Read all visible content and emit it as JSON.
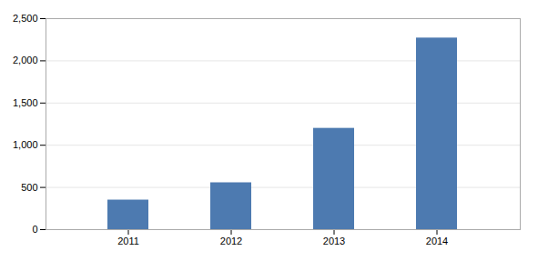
{
  "chart_data": {
    "type": "bar",
    "categories": [
      "2011",
      "2012",
      "2013",
      "2014"
    ],
    "values": [
      350,
      555,
      1200,
      2270
    ],
    "color": "#4d7ab0",
    "ylim": [
      0,
      2500
    ],
    "yticks": [
      0,
      500,
      1000,
      1500,
      2000,
      2500
    ],
    "grid": true
  }
}
